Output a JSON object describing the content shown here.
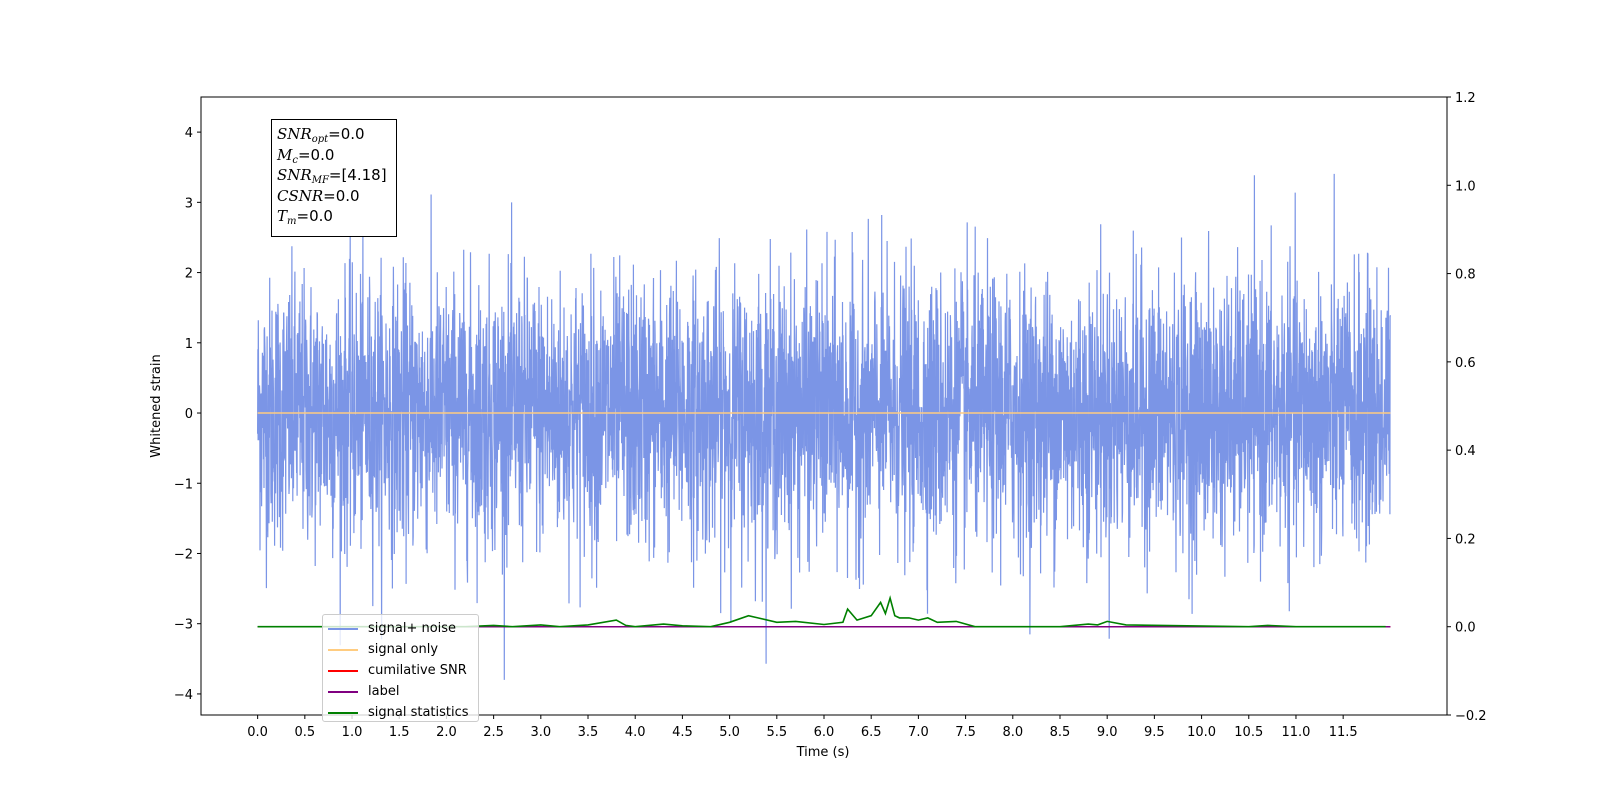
{
  "chart_data": {
    "type": "line",
    "xlabel": "Time (s)",
    "ylabel": "Whitened strain",
    "xlim": [
      -0.6,
      12.6
    ],
    "ylim": [
      -4.3,
      4.5
    ],
    "y2lim": [
      -0.2,
      1.2
    ],
    "x_ticks": [
      "0.0",
      "0.5",
      "1.0",
      "1.5",
      "2.0",
      "2.5",
      "3.0",
      "3.5",
      "4.0",
      "4.5",
      "5.0",
      "5.5",
      "6.0",
      "6.5",
      "7.0",
      "7.5",
      "8.0",
      "8.5",
      "9.0",
      "9.5",
      "10.0",
      "10.5",
      "11.0",
      "11.5"
    ],
    "y_ticks": [
      "4",
      "3",
      "2",
      "1",
      "0",
      "−1",
      "−2",
      "−3",
      "−4"
    ],
    "y2_ticks": [
      "1.2",
      "1.0",
      "0.8",
      "0.6",
      "0.4",
      "0.2",
      "0.0",
      "−0.2"
    ],
    "grid": false,
    "legend_position": "lower-left",
    "series": [
      {
        "name": "signal+ noise",
        "color": "#7b95e6",
        "axis": "left",
        "kind": "noise",
        "x_range": [
          0.0,
          12.0
        ],
        "std": 1.0,
        "max_approx": 3.8,
        "min_approx": -3.8
      },
      {
        "name": "signal only",
        "color": "#ffcc80",
        "axis": "left",
        "kind": "constant",
        "x_range": [
          0.0,
          12.0
        ],
        "value": 0.0
      },
      {
        "name": "cumilative SNR",
        "color": "#ff0000",
        "axis": "right",
        "kind": "constant",
        "x_range": [
          0.0,
          12.0
        ],
        "value": 0.0
      },
      {
        "name": "label",
        "color": "#800080",
        "axis": "right",
        "kind": "constant",
        "x_range": [
          0.0,
          12.0
        ],
        "value": 0.0
      },
      {
        "name": "signal statistics",
        "color": "#008000",
        "axis": "right",
        "kind": "line",
        "x": [
          0.0,
          2.2,
          2.5,
          2.7,
          3.0,
          3.2,
          3.5,
          3.8,
          3.9,
          4.0,
          4.3,
          4.5,
          4.8,
          5.0,
          5.2,
          5.3,
          5.5,
          5.7,
          6.0,
          6.2,
          6.25,
          6.35,
          6.5,
          6.6,
          6.65,
          6.7,
          6.75,
          6.8,
          6.9,
          7.0,
          7.1,
          7.2,
          7.4,
          7.6,
          8.5,
          8.8,
          8.9,
          9.0,
          9.2,
          10.5,
          10.7,
          11.0,
          11.95
        ],
        "y": [
          0.0,
          0.0,
          0.003,
          0.0,
          0.004,
          0.0,
          0.004,
          0.015,
          0.003,
          0.0,
          0.006,
          0.002,
          0.0,
          0.01,
          0.025,
          0.02,
          0.01,
          0.012,
          0.005,
          0.01,
          0.04,
          0.015,
          0.025,
          0.055,
          0.03,
          0.065,
          0.025,
          0.02,
          0.02,
          0.015,
          0.02,
          0.01,
          0.012,
          0.0,
          0.0,
          0.006,
          0.004,
          0.012,
          0.004,
          0.0,
          0.003,
          0.0,
          0.0
        ]
      }
    ]
  },
  "stats_box": {
    "lines": [
      {
        "var": "SNR",
        "sub": "opt",
        "value": "=0.0"
      },
      {
        "var": "M",
        "sub": "c",
        "value": "=0.0"
      },
      {
        "var": "SNR",
        "sub": "MF",
        "value": "=[4.18]"
      },
      {
        "var": "CSNR",
        "sub": "",
        "value": "=0.0"
      },
      {
        "var": "T",
        "sub": "m",
        "value": "=0.0"
      }
    ]
  },
  "legend": {
    "items": [
      {
        "label": "signal+ noise",
        "color": "#7b95e6"
      },
      {
        "label": "signal only",
        "color": "#ffcc80"
      },
      {
        "label": "cumilative SNR",
        "color": "#ff0000"
      },
      {
        "label": "label",
        "color": "#800080"
      },
      {
        "label": "signal statistics",
        "color": "#008000"
      }
    ]
  }
}
